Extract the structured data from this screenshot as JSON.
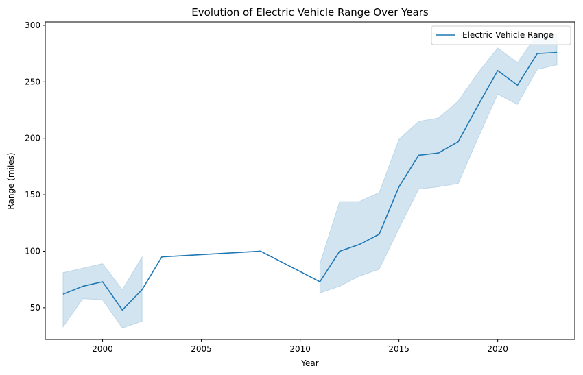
{
  "chart_data": {
    "type": "line",
    "title": "Evolution of Electric Vehicle Range Over Years",
    "xlabel": "Year",
    "ylabel": "Range (miles)",
    "xlim": [
      1997.1,
      2023.9
    ],
    "ylim": [
      22,
      303
    ],
    "xticks": [
      2000,
      2005,
      2010,
      2015,
      2020
    ],
    "yticks": [
      50,
      100,
      150,
      200,
      250,
      300
    ],
    "grid": false,
    "legend_position": "top-right",
    "series": [
      {
        "name": "Electric Vehicle Range",
        "color": "#1f77b4",
        "band_color": "#1f77b4",
        "segments": [
          {
            "x": [
              1998,
              1999,
              2000,
              2001,
              2002
            ],
            "y": [
              62,
              69,
              73,
              48,
              66
            ],
            "lower": [
              33,
              58,
              57,
              32,
              38
            ],
            "upper": [
              81,
              85,
              89,
              66,
              95
            ]
          },
          {
            "x": [
              2002,
              2003,
              2008,
              2011
            ],
            "y": [
              66,
              95,
              100,
              73
            ],
            "lower": null,
            "upper": null
          },
          {
            "x": [
              2011,
              2012,
              2013,
              2014,
              2015,
              2016,
              2017,
              2018,
              2019,
              2020,
              2021,
              2022,
              2023
            ],
            "y": [
              73,
              100,
              106,
              115,
              157,
              185,
              187,
              197,
              229,
              260,
              247,
              275,
              276
            ],
            "lower": [
              63,
              69,
              78,
              84,
              120,
              155,
              157,
              160,
              200,
              239,
              230,
              261,
              265
            ],
            "upper": [
              89,
              144,
              144,
              152,
              199,
              215,
              218,
              233,
              258,
              280,
              267,
              292,
              292
            ]
          }
        ]
      }
    ]
  }
}
